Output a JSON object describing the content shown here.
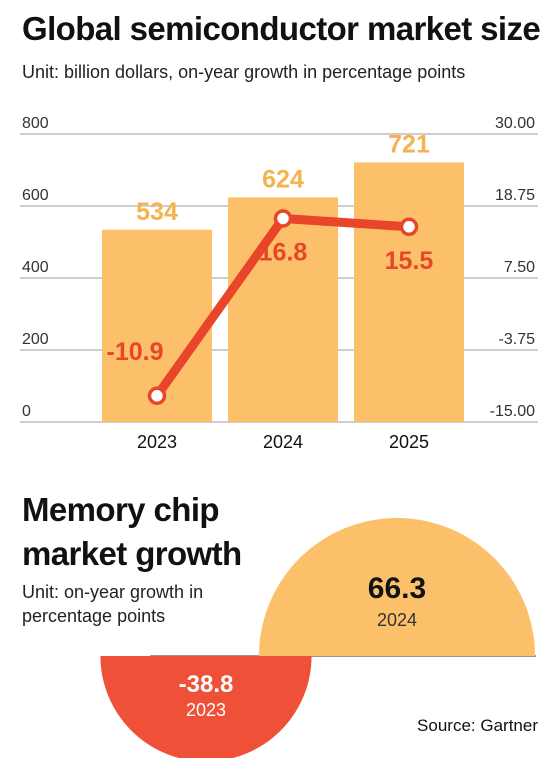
{
  "chart_data": [
    {
      "type": "bar",
      "title": "Global semiconductor market size",
      "subtitle": "Unit: billion dollars, on-year growth in percentage points",
      "categories": [
        "2023",
        "2024",
        "2025"
      ],
      "series": [
        {
          "type": "bar",
          "axis": "left",
          "values": [
            534,
            624,
            721
          ],
          "labels": [
            "534",
            "624",
            "721"
          ],
          "color": "#fdc06a",
          "label_color": "#f5b24f"
        },
        {
          "type": "line",
          "axis": "right",
          "values": [
            -10.9,
            16.8,
            15.5
          ],
          "labels": [
            "-10.9",
            "16.8",
            "15.5"
          ],
          "color": "#e8452a"
        }
      ],
      "y_left": {
        "range": [
          0,
          800
        ],
        "ticks": [
          "0",
          "200",
          "400",
          "600",
          "800"
        ]
      },
      "y_right": {
        "range": [
          -15,
          30
        ],
        "ticks": [
          "-15.00",
          "-3.75",
          "7.50",
          "18.75",
          "30.00"
        ]
      },
      "grid": true
    },
    {
      "type": "bar",
      "title": "Memory chip market growth",
      "subtitle": "Unit: on-year growth in percentage points",
      "categories": [
        "2023",
        "2024"
      ],
      "values": [
        -38.8,
        66.3
      ],
      "value_labels": [
        "-38.8",
        "66.3"
      ],
      "colors": [
        "#ee5138",
        "#fdc06a"
      ]
    }
  ],
  "source": "Source: Gartner"
}
